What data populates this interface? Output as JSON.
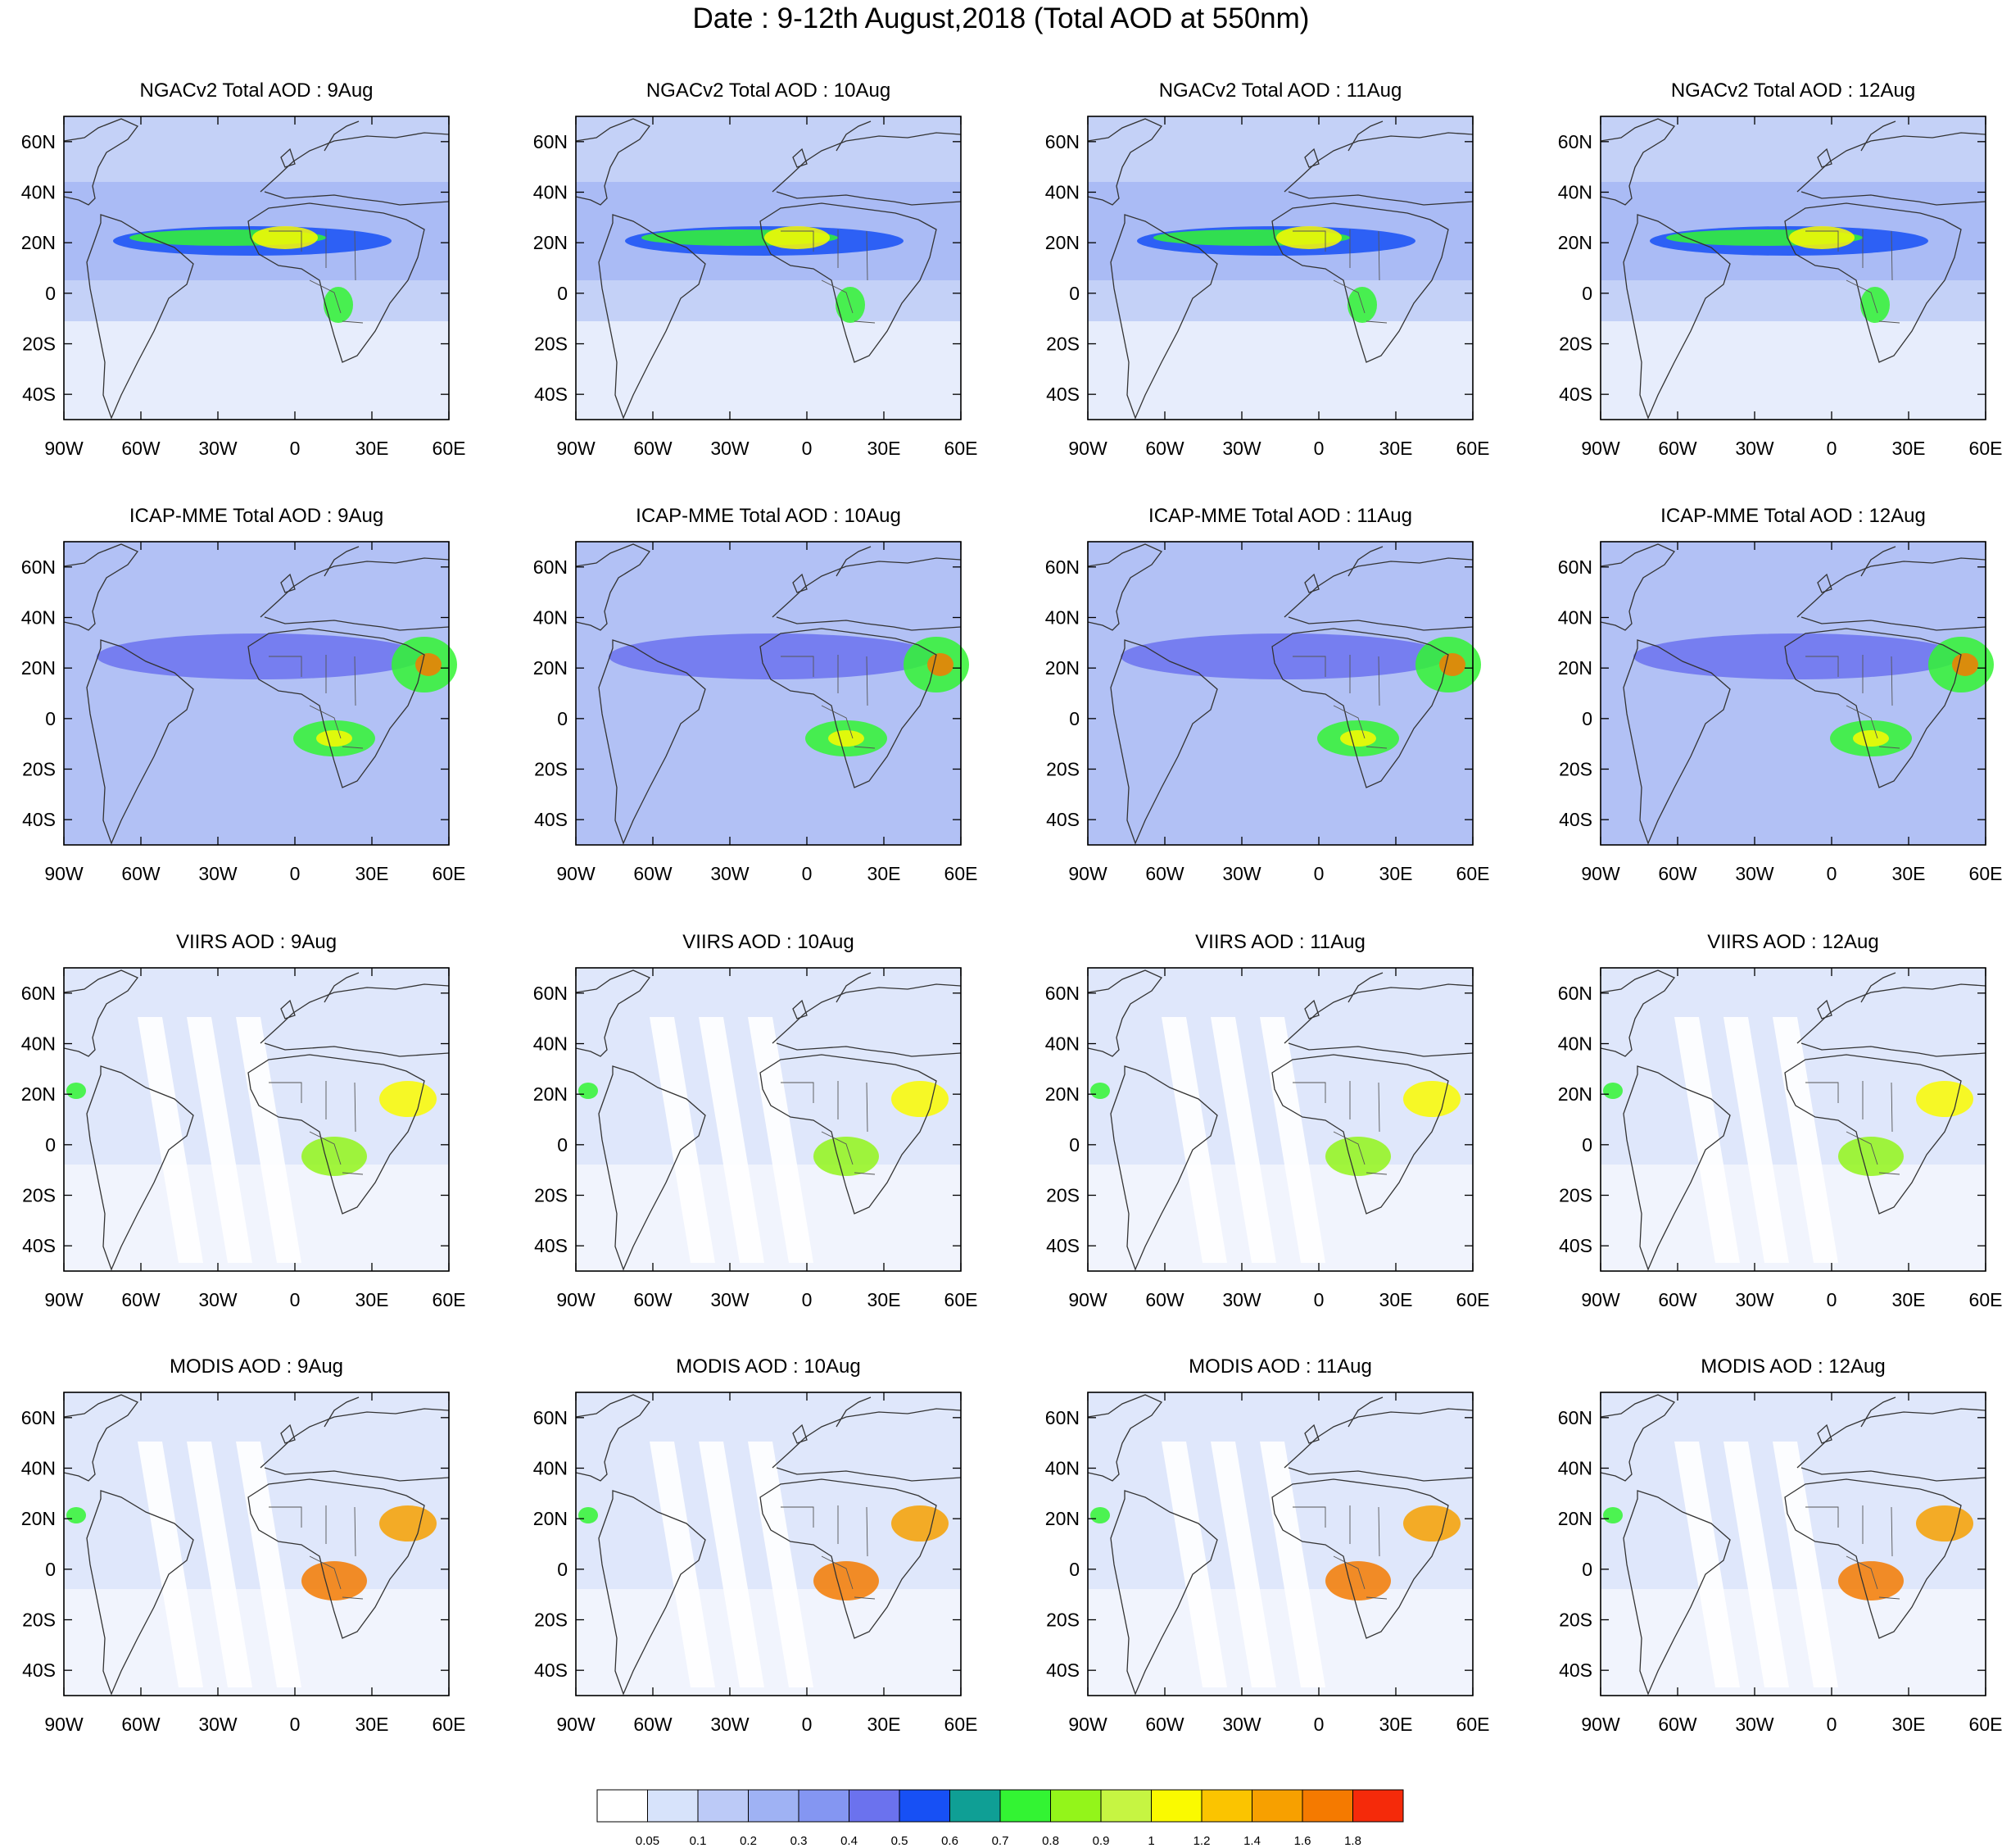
{
  "figure": {
    "title": "Date : 9-12th August,2018 (Total AOD at 550nm)"
  },
  "map_frame": {
    "lon_range": [
      -90,
      60
    ],
    "lat_range": [
      -50,
      70
    ],
    "lon_ticks": [
      -90,
      -60,
      -30,
      0,
      30,
      60
    ],
    "lat_ticks": [
      60,
      40,
      20,
      0,
      -20,
      -40
    ],
    "lon_tick_labels": [
      "90W",
      "60W",
      "30W",
      "0",
      "30E",
      "60E"
    ],
    "lat_tick_labels": [
      "60N",
      "40N",
      "20N",
      "0",
      "20S",
      "40S"
    ]
  },
  "panels": [
    {
      "title": "NGACv2 Total AOD : 9Aug",
      "product": "NGACv2",
      "day": 9
    },
    {
      "title": "NGACv2 Total AOD : 10Aug",
      "product": "NGACv2",
      "day": 10
    },
    {
      "title": "NGACv2 Total AOD : 11Aug",
      "product": "NGACv2",
      "day": 11
    },
    {
      "title": "NGACv2 Total AOD : 12Aug",
      "product": "NGACv2",
      "day": 12
    },
    {
      "title": "ICAP-MME Total AOD : 9Aug",
      "product": "ICAP-MME",
      "day": 9
    },
    {
      "title": "ICAP-MME Total AOD : 10Aug",
      "product": "ICAP-MME",
      "day": 10
    },
    {
      "title": "ICAP-MME Total AOD : 11Aug",
      "product": "ICAP-MME",
      "day": 11
    },
    {
      "title": "ICAP-MME Total AOD : 12Aug",
      "product": "ICAP-MME",
      "day": 12
    },
    {
      "title": "VIIRS AOD : 9Aug",
      "product": "VIIRS",
      "day": 9
    },
    {
      "title": "VIIRS AOD : 10Aug",
      "product": "VIIRS",
      "day": 10
    },
    {
      "title": "VIIRS AOD : 11Aug",
      "product": "VIIRS",
      "day": 11
    },
    {
      "title": "VIIRS AOD : 12Aug",
      "product": "VIIRS",
      "day": 12
    },
    {
      "title": "MODIS AOD : 9Aug",
      "product": "MODIS",
      "day": 9
    },
    {
      "title": "MODIS AOD : 10Aug",
      "product": "MODIS",
      "day": 10
    },
    {
      "title": "MODIS AOD : 11Aug",
      "product": "MODIS",
      "day": 11
    },
    {
      "title": "MODIS AOD : 12Aug",
      "product": "MODIS",
      "day": 12
    }
  ],
  "colorbar": {
    "colors": [
      "#ffffff",
      "#d7e3fb",
      "#bccaf7",
      "#9fb2f4",
      "#8496f2",
      "#6b72ee",
      "#1750f5",
      "#0f9f95",
      "#33f433",
      "#93f51a",
      "#c6f542",
      "#fafa00",
      "#fbc400",
      "#f7a000",
      "#f57a00",
      "#f52a0a"
    ],
    "labels": [
      "0.05",
      "0.1",
      "0.2",
      "0.3",
      "0.4",
      "0.5",
      "0.6",
      "0.7",
      "0.8",
      "0.9",
      "1",
      "1.2",
      "1.4",
      "1.6",
      "1.8"
    ]
  }
}
